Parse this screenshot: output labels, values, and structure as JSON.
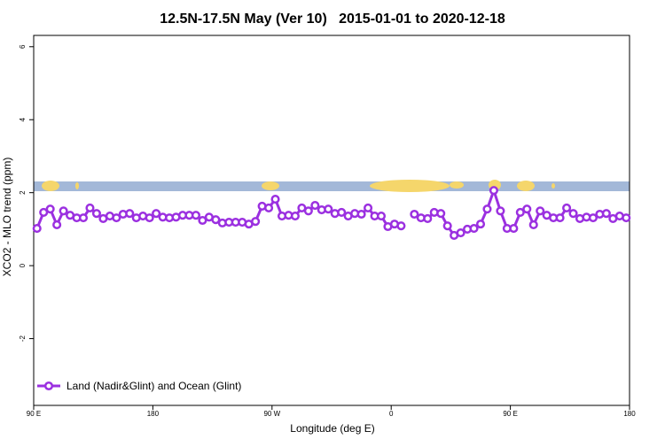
{
  "chart_data": {
    "type": "line",
    "title": "12.5N-17.5N May (Ver 10)   2015-01-01 to 2020-12-18",
    "x_label": "Longitude (deg E)",
    "y_label": "XCO2 - MLO trend (ppm)",
    "xlim": [
      90,
      540
    ],
    "ylim": [
      -3.83,
      6.31
    ],
    "xticks": [
      {
        "value": 90,
        "label": "90 E"
      },
      {
        "value": 180,
        "label": "180"
      },
      {
        "value": 270,
        "label": "90 W"
      },
      {
        "value": 360,
        "label": "0"
      },
      {
        "value": 450,
        "label": "90 E"
      },
      {
        "value": 540,
        "label": "180"
      }
    ],
    "yticks": [
      -2,
      0,
      2,
      4,
      6
    ],
    "legend": "bottom-left",
    "x": [
      92.5,
      97.5,
      102.5,
      107.5,
      112.5,
      117.5,
      122.5,
      127.5,
      132.5,
      137.5,
      142.5,
      147.5,
      152.5,
      157.5,
      162.5,
      167.5,
      172.5,
      177.5,
      182.5,
      187.5,
      192.5,
      197.5,
      202.5,
      207.5,
      212.5,
      217.5,
      222.5,
      227.5,
      232.5,
      237.5,
      242.5,
      247.5,
      252.5,
      257.5,
      262.5,
      267.5,
      272.5,
      277.5,
      282.5,
      287.5,
      292.5,
      297.5,
      302.5,
      307.5,
      312.5,
      317.5,
      322.5,
      327.5,
      332.5,
      337.5,
      342.5,
      347.5,
      352.5,
      357.5,
      362.5,
      367.5,
      372.5,
      377.5,
      382.5,
      387.5,
      392.5,
      397.5,
      402.5,
      407.5,
      412.5,
      417.5,
      422.5,
      427.5,
      432.5,
      437.5,
      442.5,
      447.5,
      452.5,
      457.5,
      462.5,
      467.5,
      472.5,
      477.5,
      482.5,
      487.5,
      492.5,
      497.5,
      502.5,
      507.5,
      512.5,
      517.5,
      522.5,
      527.5,
      532.5,
      537.5
    ],
    "series": [
      {
        "name": "Land (Nadir&Glint) and Ocean (Glint)",
        "color": "#9b30e0",
        "values": [
          1.02,
          1.46,
          1.55,
          1.12,
          1.5,
          1.38,
          1.31,
          1.31,
          1.58,
          1.43,
          1.29,
          1.36,
          1.31,
          1.41,
          1.43,
          1.31,
          1.36,
          1.31,
          1.43,
          1.33,
          1.31,
          1.33,
          1.38,
          1.38,
          1.38,
          1.24,
          1.33,
          1.26,
          1.17,
          1.19,
          1.19,
          1.19,
          1.14,
          1.21,
          1.63,
          1.58,
          1.82,
          1.36,
          1.38,
          1.36,
          1.58,
          1.5,
          1.65,
          1.53,
          1.55,
          1.43,
          1.46,
          1.36,
          1.43,
          1.41,
          1.58,
          1.36,
          1.36,
          1.07,
          1.14,
          1.09,
          null,
          1.41,
          1.31,
          1.29,
          1.46,
          1.43,
          1.09,
          0.83,
          0.9,
          1.0,
          1.02,
          1.14,
          1.55,
          2.06,
          1.5,
          1.02,
          1.02,
          1.46,
          1.55,
          1.12,
          1.5,
          1.38,
          1.31,
          1.31,
          1.58,
          1.43,
          1.29,
          1.33,
          1.31,
          1.41,
          1.43,
          1.29,
          1.36,
          1.31
        ]
      }
    ]
  }
}
